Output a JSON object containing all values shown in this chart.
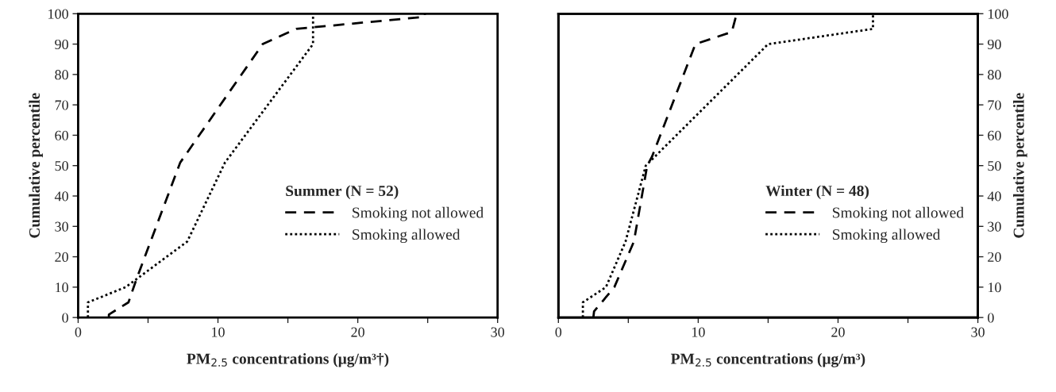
{
  "chart_data": [
    {
      "type": "line",
      "xlabel": "PM$_{2.5}$ concentrations (μg/m³†)",
      "ylabel": "Cumulative percentile",
      "legend_title": "Summer (N = 52)",
      "legend": "lower right",
      "grid": false,
      "marker": "none",
      "xlim": [
        0,
        30
      ],
      "ylim": [
        0,
        100
      ],
      "xticks": [
        0,
        {
          "value": 5,
          "label": null
        },
        10,
        {
          "value": 15,
          "label": null
        },
        20,
        {
          "value": 25,
          "label": null
        },
        30
      ],
      "yticks": [
        0,
        10,
        20,
        30,
        40,
        50,
        60,
        70,
        80,
        90,
        100
      ],
      "series": [
        {
          "name": "Smoking not allowed",
          "color": "#000000",
          "line_style": "dashed",
          "x": [
            2.2,
            2.2,
            3.6,
            4.2,
            7.3,
            13.2,
            15.6,
            24.8,
            24.8
          ],
          "values": [
            0,
            1,
            5,
            13,
            51,
            90,
            95,
            99,
            100
          ]
        },
        {
          "name": "Smoking allowed",
          "color": "#000000",
          "line_style": "dotted",
          "x": [
            0.7,
            0.7,
            3.4,
            7.8,
            10.5,
            16.8,
            16.8
          ],
          "values": [
            0,
            5,
            10,
            25,
            51,
            90,
            100
          ]
        }
      ]
    },
    {
      "type": "line",
      "xlabel": "PM$_{2.5}$ concentrations (μg/m³)",
      "y2label": "Cumulative percentile",
      "legend_title": "Winter (N = 48)",
      "legend": "lower right",
      "grid": false,
      "marker": "none",
      "xlim": [
        0,
        30
      ],
      "y2lim": [
        0,
        100
      ],
      "xticks": [
        0,
        {
          "value": 5,
          "label": null
        },
        10,
        {
          "value": 15,
          "label": null
        },
        20,
        {
          "value": 25,
          "label": null
        },
        30
      ],
      "y2ticks": [
        0,
        10,
        20,
        30,
        40,
        50,
        60,
        70,
        80,
        90,
        100
      ],
      "series": [
        {
          "name": "Smoking not allowed",
          "color": "#000000",
          "line_style": "dashed",
          "axis": "y2",
          "x": [
            2.5,
            2.55,
            4.0,
            5.4,
            6.35,
            6.7,
            9.8,
            12.4,
            12.75
          ],
          "values": [
            0,
            2,
            10,
            25,
            50,
            53,
            90,
            94,
            100
          ]
        },
        {
          "name": "Smoking allowed",
          "color": "#000000",
          "line_style": "dotted",
          "axis": "y2",
          "x": [
            1.75,
            1.75,
            3.4,
            4.8,
            6.25,
            15.0,
            22.5,
            22.5
          ],
          "values": [
            0,
            5,
            10,
            25,
            50,
            90,
            95,
            100
          ]
        }
      ]
    }
  ]
}
